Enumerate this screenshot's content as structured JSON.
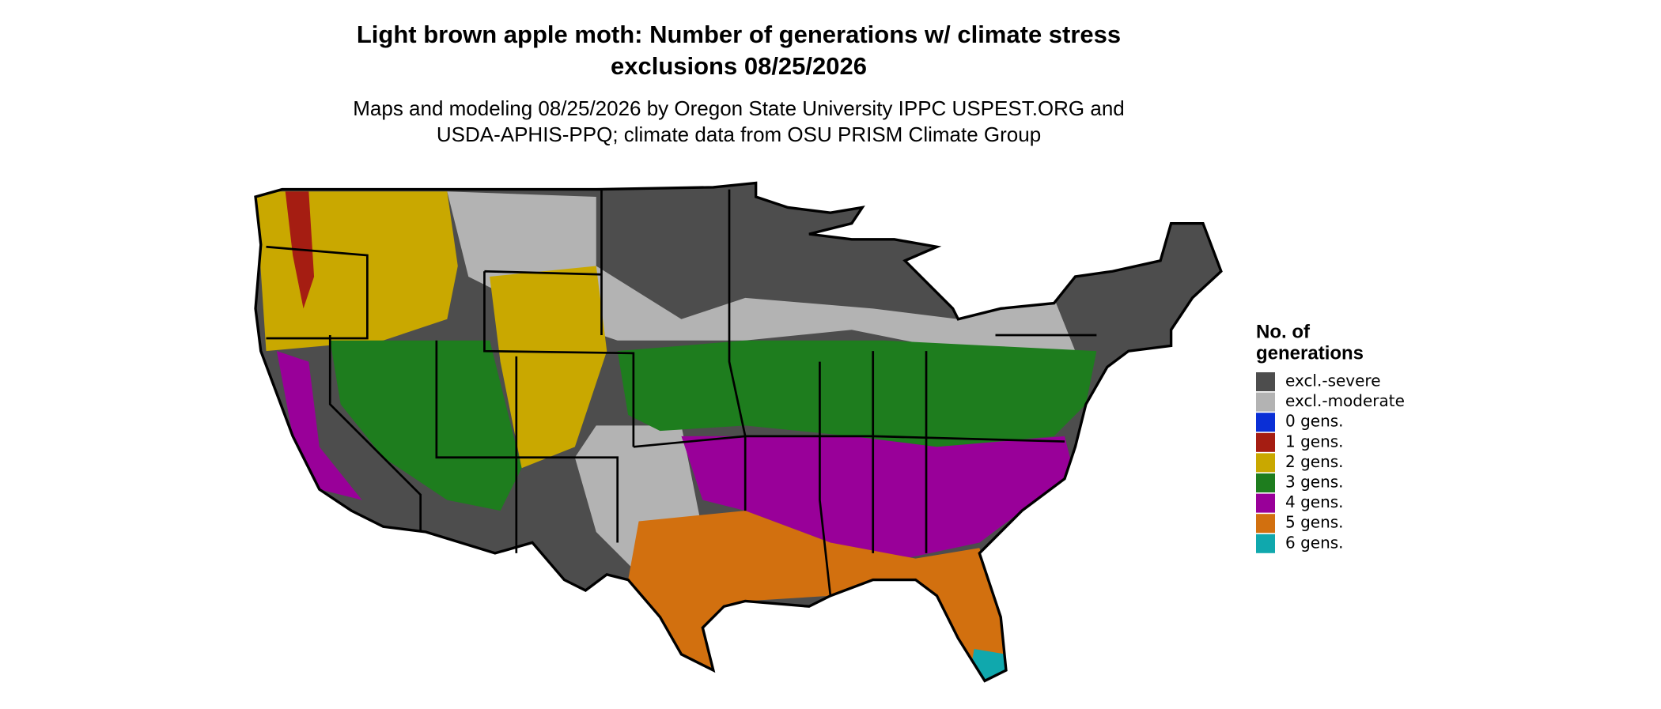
{
  "title": [
    "Light brown apple moth: Number of generations w/ climate stress",
    "exclusions 08/25/2026"
  ],
  "subtitle": [
    "Maps and modeling 08/25/2026 by Oregon State University IPPC USPEST.ORG and",
    "USDA-APHIS-PPQ; climate data from OSU PRISM Climate Group"
  ],
  "legend": {
    "title": [
      "No. of",
      "generations"
    ],
    "items": [
      {
        "label": "excl.-severe",
        "color": "#4d4d4d"
      },
      {
        "label": "excl.-moderate",
        "color": "#b3b3b3"
      },
      {
        "label": "0 gens.",
        "color": "#0a2fd6"
      },
      {
        "label": "1 gens.",
        "color": "#a51d12"
      },
      {
        "label": "2 gens.",
        "color": "#c9a800"
      },
      {
        "label": "3 gens.",
        "color": "#1e7d1e"
      },
      {
        "label": "4 gens.",
        "color": "#990099"
      },
      {
        "label": "5 gens.",
        "color": "#d2700f"
      },
      {
        "label": "6 gens.",
        "color": "#10a8ad"
      }
    ]
  }
}
